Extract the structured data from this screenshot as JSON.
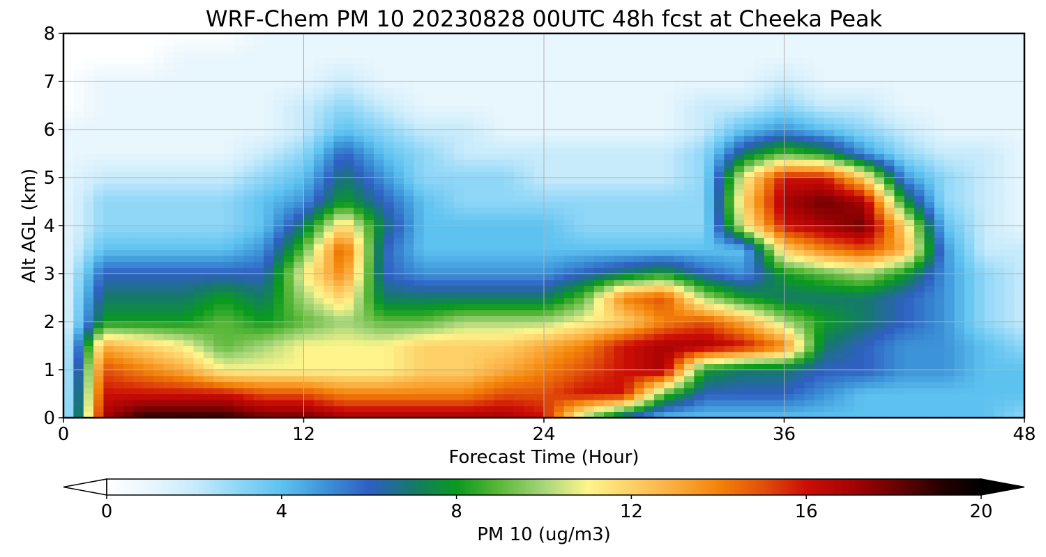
{
  "chart_data": {
    "type": "heatmap",
    "title": "WRF-Chem PM 10  20230828 00UTC 48h fcst at Cheeka Peak",
    "xlabel": "Forecast Time (Hour)",
    "ylabel": "Alt AGL (km)",
    "xlim": [
      0,
      48
    ],
    "ylim": [
      0,
      8
    ],
    "x_ticks": [
      "0",
      "12",
      "24",
      "36",
      "48"
    ],
    "y_ticks": [
      "0",
      "1",
      "2",
      "3",
      "4",
      "5",
      "6",
      "7",
      "8"
    ],
    "grid": true,
    "colorbar": {
      "label": "PM 10  (ug/m3)",
      "range": [
        0,
        20
      ],
      "ticks": [
        "0",
        "4",
        "8",
        "12",
        "16",
        "20"
      ],
      "extend": "both",
      "colors": [
        "#ffffff",
        "#e8f6fd",
        "#c8ebfb",
        "#8fd6f7",
        "#5ec2f0",
        "#3c93d8",
        "#2f5fc2",
        "#157a6a",
        "#0a9a1e",
        "#5cb83a",
        "#a6d67a",
        "#fdf58c",
        "#fdd068",
        "#fbac3e",
        "#f38308",
        "#e2500a",
        "#cc0e06",
        "#a80304",
        "#6e0202",
        "#2a0000",
        "#000000"
      ]
    },
    "x": [
      0,
      2,
      4,
      6,
      8,
      10,
      12,
      14,
      16,
      18,
      20,
      22,
      24,
      26,
      28,
      30,
      32,
      34,
      36,
      38,
      40,
      42,
      44,
      46,
      48
    ],
    "y": [
      0,
      0.5,
      1,
      1.5,
      2,
      2.5,
      3,
      3.5,
      4,
      4.5,
      5,
      5.5,
      6,
      6.5,
      7,
      7.5,
      8
    ],
    "z": [
      [
        1,
        17,
        19,
        19,
        19,
        18,
        18,
        17,
        17,
        17,
        17,
        17,
        16,
        10,
        6,
        4,
        4,
        4,
        4,
        4,
        4,
        4,
        4,
        4,
        3
      ],
      [
        1,
        16,
        16,
        16,
        16,
        15,
        15,
        14,
        14,
        14,
        14,
        15,
        15,
        16,
        16,
        9,
        6,
        6,
        6,
        5,
        4,
        4,
        4,
        4,
        4
      ],
      [
        1,
        15,
        14,
        13,
        11,
        11,
        11,
        11,
        11,
        12,
        12,
        13,
        14,
        15,
        16,
        17,
        8,
        7,
        7,
        6,
        6,
        5,
        5,
        4,
        4
      ],
      [
        1,
        13,
        12,
        11,
        9,
        10,
        11,
        11,
        11,
        12,
        12,
        12,
        13,
        14,
        16,
        17,
        17,
        16,
        14,
        7,
        6,
        5,
        5,
        4,
        3
      ],
      [
        1,
        8,
        8,
        8,
        9,
        8,
        9,
        10,
        9,
        9,
        10,
        10,
        10,
        11,
        12,
        14,
        15,
        13,
        10,
        8,
        7,
        6,
        5,
        3,
        2
      ],
      [
        1,
        7,
        7,
        7,
        8,
        7,
        10,
        12,
        7,
        7,
        7,
        7,
        7,
        9,
        14,
        15,
        10,
        8,
        7,
        7,
        7,
        6,
        5,
        3,
        2
      ],
      [
        1,
        6,
        6,
        6,
        6,
        6,
        11,
        14,
        6,
        5,
        5,
        5,
        5,
        6,
        7,
        8,
        6,
        5,
        8,
        9,
        10,
        8,
        5,
        3,
        2
      ],
      [
        1,
        4,
        4,
        4,
        4,
        5,
        9,
        15,
        6,
        4,
        4,
        4,
        4,
        4,
        4,
        4,
        4,
        4,
        12,
        14,
        15,
        13,
        5,
        2,
        2
      ],
      [
        1,
        3,
        3,
        3,
        3,
        4,
        7,
        12,
        7,
        4,
        4,
        4,
        4,
        3,
        3,
        3,
        3,
        11,
        16,
        17,
        18,
        12,
        4,
        2,
        1
      ],
      [
        1,
        3,
        3,
        3,
        3,
        4,
        5,
        8,
        6,
        4,
        3,
        3,
        3,
        3,
        3,
        3,
        3,
        12,
        17,
        18,
        17,
        8,
        3,
        2,
        1
      ],
      [
        1,
        2,
        2,
        2,
        2,
        3,
        4,
        7,
        5,
        3,
        3,
        3,
        2,
        2,
        2,
        2,
        3,
        11,
        16,
        16,
        12,
        5,
        3,
        2,
        1
      ],
      [
        1,
        1,
        1,
        1,
        1,
        2,
        3,
        6,
        4,
        3,
        2,
        2,
        2,
        2,
        2,
        2,
        3,
        7,
        9,
        8,
        5,
        3,
        2,
        2,
        1
      ],
      [
        1,
        1,
        1,
        1,
        1,
        1,
        2,
        4,
        3,
        2,
        2,
        1,
        1,
        1,
        1,
        1,
        2,
        4,
        5,
        4,
        3,
        2,
        1,
        1,
        1
      ],
      [
        0,
        1,
        1,
        1,
        1,
        1,
        2,
        3,
        2,
        1,
        1,
        1,
        1,
        1,
        1,
        1,
        2,
        2,
        3,
        2,
        2,
        1,
        1,
        1,
        1
      ],
      [
        0,
        1,
        1,
        1,
        1,
        1,
        1,
        2,
        1,
        1,
        1,
        1,
        1,
        1,
        1,
        1,
        1,
        1,
        2,
        1,
        1,
        1,
        1,
        1,
        1
      ],
      [
        0,
        0,
        0,
        1,
        1,
        1,
        1,
        1,
        1,
        1,
        1,
        1,
        1,
        1,
        1,
        1,
        1,
        1,
        1,
        1,
        1,
        1,
        1,
        1,
        1
      ],
      [
        0,
        0,
        0,
        0,
        0,
        1,
        1,
        1,
        1,
        1,
        1,
        1,
        1,
        1,
        1,
        1,
        1,
        1,
        1,
        1,
        1,
        1,
        1,
        1,
        1
      ]
    ]
  }
}
